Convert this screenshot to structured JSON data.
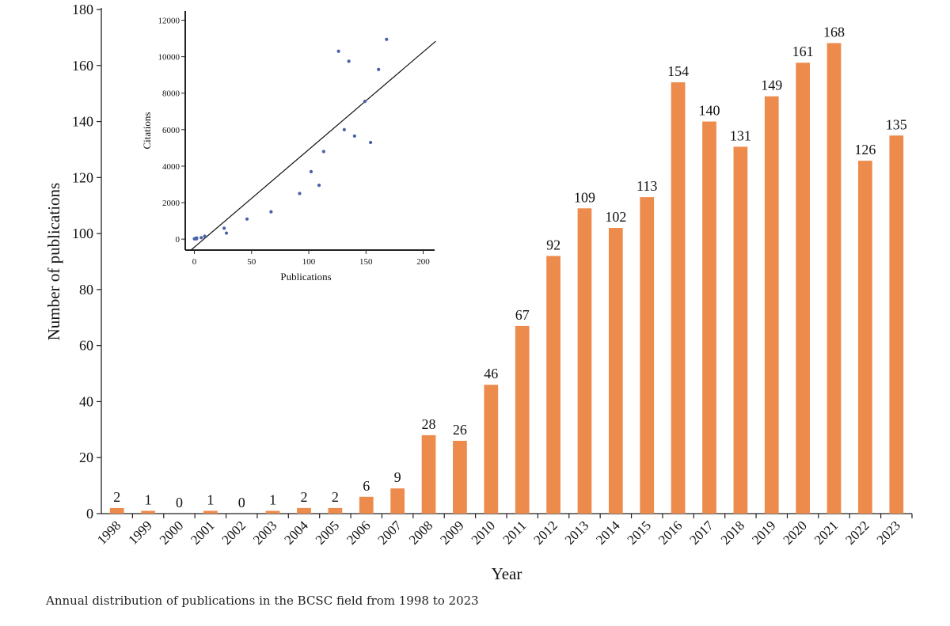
{
  "caption": "Annual distribution of publications in the BCSC field from 1998 to 2023",
  "chart_data": [
    {
      "type": "bar",
      "title": "",
      "xlabel": "Year",
      "ylabel": "Number of publications",
      "ylim": [
        0,
        180
      ],
      "yticks": [
        0,
        20,
        40,
        60,
        80,
        100,
        120,
        140,
        160,
        180
      ],
      "categories": [
        "1998",
        "1999",
        "2000",
        "2001",
        "2002",
        "2003",
        "2004",
        "2005",
        "2006",
        "2007",
        "2008",
        "2009",
        "2010",
        "2011",
        "2012",
        "2013",
        "2014",
        "2015",
        "2016",
        "2017",
        "2018",
        "2019",
        "2020",
        "2021",
        "2022",
        "2023"
      ],
      "values": [
        2,
        1,
        0,
        1,
        0,
        1,
        2,
        2,
        6,
        9,
        28,
        26,
        46,
        67,
        92,
        109,
        102,
        113,
        154,
        140,
        131,
        149,
        161,
        168,
        126,
        135
      ],
      "data_labels": [
        "2",
        "1",
        "0",
        "1",
        "0",
        "1",
        "2",
        "2",
        "6",
        "9",
        "28",
        "26",
        "46",
        "67",
        "92",
        "109",
        "102",
        "113",
        "154",
        "140",
        "131",
        "149",
        "161",
        "168",
        "126",
        "135"
      ],
      "bar_color": "#ec8b4c",
      "grid": false
    },
    {
      "type": "scatter",
      "title": "",
      "xlabel": "Publications",
      "ylabel": "Citations",
      "xlim": [
        -8,
        210
      ],
      "ylim": [
        -600,
        12500
      ],
      "xticks": [
        0,
        50,
        100,
        150,
        200
      ],
      "yticks": [
        0,
        2000,
        4000,
        6000,
        8000,
        10000,
        12000
      ],
      "point_color": "#4a62a8",
      "points": [
        {
          "x": 0,
          "y": 20
        },
        {
          "x": 1,
          "y": 40
        },
        {
          "x": 1,
          "y": 10
        },
        {
          "x": 2,
          "y": 60
        },
        {
          "x": 2,
          "y": 30
        },
        {
          "x": 6,
          "y": 80
        },
        {
          "x": 9,
          "y": 160
        },
        {
          "x": 26,
          "y": 600
        },
        {
          "x": 28,
          "y": 330
        },
        {
          "x": 46,
          "y": 1100
        },
        {
          "x": 67,
          "y": 1500
        },
        {
          "x": 92,
          "y": 2500
        },
        {
          "x": 102,
          "y": 3700
        },
        {
          "x": 109,
          "y": 2950
        },
        {
          "x": 113,
          "y": 4800
        },
        {
          "x": 126,
          "y": 10300
        },
        {
          "x": 131,
          "y": 6000
        },
        {
          "x": 135,
          "y": 9750
        },
        {
          "x": 140,
          "y": 5650
        },
        {
          "x": 149,
          "y": 7550
        },
        {
          "x": 154,
          "y": 5300
        },
        {
          "x": 161,
          "y": 9300
        },
        {
          "x": 168,
          "y": 10950
        }
      ],
      "trendline": {
        "x": [
          -3,
          211
        ],
        "y": [
          -600,
          10850
        ]
      },
      "grid": false
    }
  ]
}
